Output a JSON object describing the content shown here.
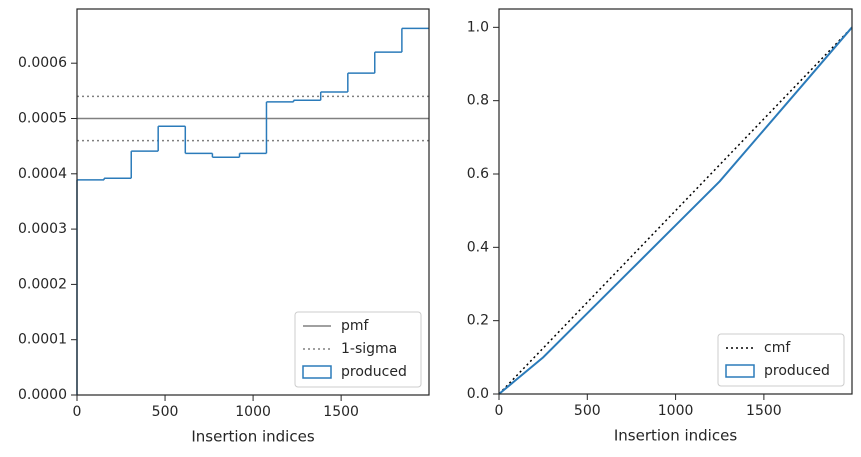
{
  "chart_data": [
    {
      "type": "histogram",
      "xlabel": "Insertion indices",
      "bins": [
        0,
        154,
        308,
        461,
        615,
        769,
        923,
        1076,
        1230,
        1384,
        1538,
        1691,
        1845,
        1999
      ],
      "series": [
        {
          "name": "produced",
          "color": "#2b7bba",
          "values": [
            0.000389,
            0.000392,
            0.000441,
            0.000486,
            0.000437,
            0.00043,
            0.000437,
            0.00053,
            0.000533,
            0.000548,
            0.000582,
            0.00062,
            0.000663
          ]
        }
      ],
      "hlines": [
        {
          "name": "pmf",
          "color": "#808080",
          "style": "solid",
          "values": [
            0.0005
          ]
        },
        {
          "name": "1-sigma",
          "color": "#808080",
          "style": "dotted",
          "values": [
            0.00046,
            0.00054
          ]
        }
      ],
      "xlim": [
        0,
        1999
      ],
      "ylim": [
        0,
        0.000698
      ],
      "xticks": [
        0,
        500,
        1000,
        1500
      ],
      "yticks": [
        {
          "value": 0,
          "label": "0.0000"
        },
        {
          "value": 0.0001,
          "label": "0.0001"
        },
        {
          "value": 0.0002,
          "label": "0.0002"
        },
        {
          "value": 0.0003,
          "label": "0.0003"
        },
        {
          "value": 0.0004,
          "label": "0.0004"
        },
        {
          "value": 0.0005,
          "label": "0.0005"
        },
        {
          "value": 0.0006,
          "label": "0.0006"
        }
      ],
      "legend": "lower right"
    },
    {
      "type": "line",
      "xlabel": "Insertion indices",
      "series": [
        {
          "name": "cmf",
          "color": "#000000",
          "style": "dotted",
          "x": [
            0,
            1999
          ],
          "values": [
            0,
            1
          ]
        },
        {
          "name": "produced",
          "color": "#2b7bba",
          "style": "solid",
          "x": [
            0,
            250,
            500,
            750,
            1000,
            1250,
            1500,
            1750,
            1999
          ],
          "values": [
            0,
            0.1,
            0.22,
            0.34,
            0.46,
            0.58,
            0.72,
            0.86,
            1.0
          ]
        }
      ],
      "xlim": [
        0,
        1999
      ],
      "ylim": [
        0,
        1.05
      ],
      "xticks": [
        0,
        500,
        1000,
        1500
      ],
      "yticks": [
        {
          "value": 0,
          "label": "0.0"
        },
        {
          "value": 0.2,
          "label": "0.2"
        },
        {
          "value": 0.4,
          "label": "0.4"
        },
        {
          "value": 0.6,
          "label": "0.6"
        },
        {
          "value": 0.8,
          "label": "0.8"
        },
        {
          "value": 1.0,
          "label": "1.0"
        }
      ],
      "legend": "lower right"
    }
  ]
}
